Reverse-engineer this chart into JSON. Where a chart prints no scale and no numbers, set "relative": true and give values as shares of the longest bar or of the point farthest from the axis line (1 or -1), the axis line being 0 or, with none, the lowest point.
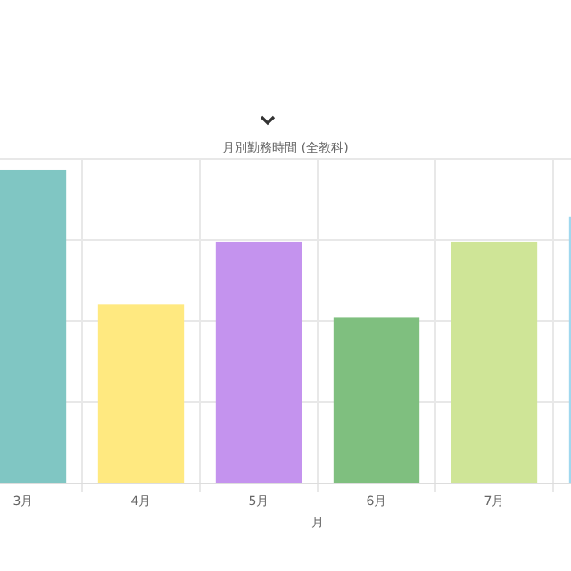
{
  "chart_data": {
    "type": "bar",
    "title": "月別勤務時間 (全教科)",
    "xlabel": "月",
    "categories": [
      "3月",
      "4月",
      "5月",
      "6月",
      "7月",
      null
    ],
    "values": [
      1,
      0.57,
      0.77,
      0.53,
      0.77,
      0.85
    ],
    "colors": [
      "#80c6c3",
      "#ffe980",
      "#c493ee",
      "#7fbf7f",
      "#cfe597",
      "#a0d8ef"
    ],
    "relative": true,
    "grid": true
  }
}
